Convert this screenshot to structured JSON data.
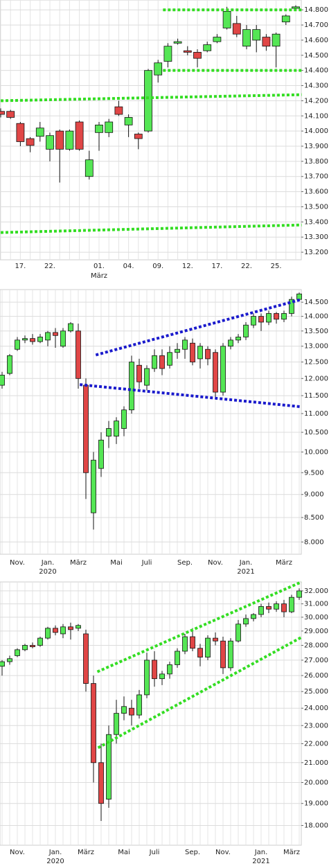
{
  "chart_data": [
    {
      "type": "candlestick",
      "log": false,
      "grid": true,
      "up_color": "#55e655",
      "down_color": "#e04646",
      "categories": [
        null,
        null,
        "17.",
        null,
        null,
        "22.",
        null,
        null,
        null,
        null,
        "01.",
        null,
        null,
        "04.",
        null,
        null,
        "09.",
        null,
        null,
        "12.",
        null,
        null,
        "17.",
        null,
        null,
        "22.",
        null,
        null,
        "25.",
        null,
        null
      ],
      "x_sublabels": [
        null,
        null,
        null,
        null,
        null,
        null,
        null,
        null,
        null,
        null,
        "März",
        null,
        null,
        null,
        null,
        null,
        null,
        null,
        null,
        null,
        null,
        null,
        null,
        null,
        null,
        null,
        null,
        null,
        null,
        null,
        null
      ],
      "open": [
        14130,
        14130,
        14050,
        13950,
        13965,
        13880,
        14000,
        13880,
        14060,
        13700,
        13990,
        13990,
        14160,
        14040,
        13980,
        14000,
        14370,
        14460,
        14580,
        14530,
        14520,
        14530,
        14590,
        14680,
        14710,
        14560,
        14600,
        14620,
        14560,
        14720,
        14810
      ],
      "high": [
        14150,
        14140,
        14060,
        13960,
        14060,
        13990,
        14010,
        14010,
        14070,
        13870,
        14060,
        14080,
        14200,
        14110,
        13990,
        14410,
        14470,
        14580,
        14610,
        14560,
        14540,
        14590,
        14640,
        14820,
        14760,
        14700,
        14700,
        14640,
        14650,
        14770,
        14830
      ],
      "low": [
        14090,
        14080,
        13900,
        13860,
        13930,
        13800,
        13660,
        13870,
        13870,
        13680,
        13870,
        13960,
        14100,
        13960,
        13880,
        13990,
        14320,
        14420,
        14570,
        14500,
        14420,
        14520,
        14580,
        14670,
        14620,
        14540,
        14520,
        14530,
        14420,
        14700,
        14800
      ],
      "close": [
        14110,
        14090,
        13930,
        13905,
        14020,
        13970,
        13880,
        14000,
        13880,
        13810,
        14040,
        14060,
        14110,
        14090,
        13950,
        14400,
        14450,
        14560,
        14590,
        14520,
        14480,
        14570,
        14620,
        14790,
        14640,
        14670,
        14670,
        14560,
        14640,
        14760,
        14820
      ],
      "ylim": [
        13150,
        14865
      ],
      "yticks": [
        {
          "value": 14800,
          "label": "14.800"
        },
        {
          "value": 14700,
          "label": "14.700"
        },
        {
          "value": 14600,
          "label": "14.600"
        },
        {
          "value": 14500,
          "label": "14.500"
        },
        {
          "value": 14400,
          "label": "14.400"
        },
        {
          "value": 14300,
          "label": "14.300"
        },
        {
          "value": 14200,
          "label": "14.200"
        },
        {
          "value": 14100,
          "label": "14.100"
        },
        {
          "value": 14000,
          "label": "14.000"
        },
        {
          "value": 13900,
          "label": "13.900"
        },
        {
          "value": 13800,
          "label": "13.800"
        },
        {
          "value": 13700,
          "label": "13.700"
        },
        {
          "value": 13600,
          "label": "13.600"
        },
        {
          "value": 13500,
          "label": "13.500"
        },
        {
          "value": 13400,
          "label": "13.400"
        },
        {
          "value": 13300,
          "label": "13.300"
        },
        {
          "value": 13200,
          "label": "13.200"
        }
      ],
      "trendlines": [
        {
          "x": [
            16.5,
            30.6
          ],
          "y": [
            14800,
            14800
          ],
          "color": "#33dd22"
        },
        {
          "x": [
            16.5,
            30.6
          ],
          "y": [
            14400,
            14400
          ],
          "color": "#33dd22"
        },
        {
          "x": [
            0,
            30.6
          ],
          "y": [
            14200,
            14240
          ],
          "color": "#33dd22"
        },
        {
          "x": [
            0,
            30.6
          ],
          "y": [
            13330,
            13380
          ],
          "color": "#33dd22"
        }
      ]
    },
    {
      "type": "candlestick",
      "log": true,
      "grid": true,
      "up_color": "#55e655",
      "down_color": "#e04646",
      "categories": [
        null,
        null,
        "Nov.",
        null,
        null,
        null,
        "Jan.",
        null,
        null,
        null,
        "März",
        null,
        null,
        null,
        null,
        "Mai",
        null,
        null,
        null,
        "Juli",
        null,
        null,
        null,
        null,
        "Sep.",
        null,
        null,
        null,
        "Nov.",
        null,
        null,
        null,
        "Jan.",
        null,
        null,
        null,
        null,
        "März",
        null,
        null
      ],
      "x_sublabels": [
        null,
        null,
        null,
        null,
        null,
        null,
        "2020",
        null,
        null,
        null,
        null,
        null,
        null,
        null,
        null,
        null,
        null,
        null,
        null,
        null,
        null,
        null,
        null,
        null,
        null,
        null,
        null,
        null,
        null,
        null,
        null,
        null,
        "2021",
        null,
        null,
        null,
        null,
        null,
        null,
        null
      ],
      "open": [
        11800,
        12150,
        12900,
        13200,
        13250,
        13150,
        13200,
        13450,
        13000,
        13500,
        13500,
        11800,
        8600,
        9600,
        10400,
        10400,
        10600,
        11100,
        12400,
        11800,
        12300,
        12700,
        12400,
        12800,
        12900,
        13100,
        12600,
        12900,
        12800,
        11600,
        13000,
        13200,
        13300,
        13700,
        14000,
        13800,
        14100,
        13900,
        14100,
        14600
      ],
      "high": [
        12200,
        12750,
        13300,
        13350,
        13400,
        13400,
        13500,
        13600,
        13600,
        13800,
        13750,
        12000,
        10000,
        10500,
        10800,
        10900,
        11200,
        12700,
        12600,
        12400,
        12900,
        12900,
        13000,
        13100,
        13300,
        13250,
        13100,
        13000,
        12900,
        13100,
        13300,
        13400,
        13800,
        14100,
        14100,
        14200,
        14150,
        14200,
        14700,
        14850
      ],
      "low": [
        11700,
        12100,
        12850,
        13100,
        13050,
        13100,
        13000,
        12950,
        12950,
        13450,
        11700,
        8900,
        8250,
        9400,
        10100,
        10200,
        10400,
        11000,
        11700,
        11650,
        12200,
        12100,
        12300,
        12600,
        12600,
        12400,
        12300,
        12400,
        11450,
        11500,
        12900,
        13100,
        13200,
        13600,
        13500,
        13700,
        13750,
        13800,
        14000,
        14550
      ],
      "close": [
        12100,
        12700,
        13200,
        13250,
        13150,
        13300,
        13450,
        13350,
        13500,
        13750,
        12000,
        9500,
        9800,
        10300,
        10600,
        10800,
        11100,
        12500,
        11900,
        12300,
        12700,
        12300,
        12800,
        12900,
        13200,
        12500,
        13000,
        12600,
        11600,
        13000,
        13200,
        13300,
        13700,
        14000,
        13800,
        14100,
        13900,
        14100,
        14600,
        14800
      ],
      "ylim": [
        7760,
        14960
      ],
      "yticks": [
        {
          "value": 14500,
          "label": "14.500"
        },
        {
          "value": 14000,
          "label": "14.000"
        },
        {
          "value": 13500,
          "label": "13.500"
        },
        {
          "value": 13000,
          "label": "13.000"
        },
        {
          "value": 12500,
          "label": "12.500"
        },
        {
          "value": 12000,
          "label": "12.000"
        },
        {
          "value": 11500,
          "label": "11.500"
        },
        {
          "value": 11000,
          "label": "11.000"
        },
        {
          "value": 10500,
          "label": "10.500"
        },
        {
          "value": 10000,
          "label": "10.000"
        },
        {
          "value": 9500,
          "label": "9.500"
        },
        {
          "value": 9000,
          "label": "9.000"
        },
        {
          "value": 8500,
          "label": "8.500"
        },
        {
          "value": 8000,
          "label": "8.000"
        }
      ],
      "trendlines": [
        {
          "x": [
            12.3,
            39.3
          ],
          "y": [
            12720,
            14600
          ],
          "color": "#1a1acc"
        },
        {
          "x": [
            10.2,
            39.3
          ],
          "y": [
            11820,
            11185
          ],
          "color": "#1a1acc"
        }
      ]
    },
    {
      "type": "candlestick",
      "log": true,
      "grid": true,
      "up_color": "#55e655",
      "down_color": "#e04646",
      "categories": [
        null,
        null,
        "Nov.",
        null,
        null,
        null,
        null,
        "Jan.",
        null,
        null,
        null,
        "März",
        null,
        null,
        null,
        null,
        "Mai",
        null,
        null,
        null,
        "Juli",
        null,
        null,
        null,
        null,
        "Sep.",
        null,
        null,
        null,
        "Nov.",
        null,
        null,
        null,
        null,
        "Jan.",
        null,
        null,
        null,
        "März",
        null
      ],
      "x_sublabels": [
        null,
        null,
        null,
        null,
        null,
        null,
        null,
        "2020",
        null,
        null,
        null,
        null,
        null,
        null,
        null,
        null,
        null,
        null,
        null,
        null,
        null,
        null,
        null,
        null,
        null,
        null,
        null,
        null,
        null,
        null,
        null,
        null,
        null,
        null,
        "2021",
        null,
        null,
        null,
        null,
        null
      ],
      "open": [
        26600,
        26900,
        27300,
        27700,
        28000,
        28000,
        28500,
        29200,
        28800,
        29300,
        29200,
        28800,
        25500,
        21000,
        19200,
        22500,
        23700,
        24000,
        23600,
        24800,
        27000,
        25800,
        26100,
        26700,
        27600,
        28600,
        27800,
        27200,
        28500,
        28300,
        26500,
        28300,
        29500,
        29900,
        30200,
        30800,
        30600,
        31000,
        30400,
        31500
      ],
      "high": [
        27000,
        27300,
        27800,
        28100,
        28200,
        28600,
        29300,
        29400,
        29500,
        29600,
        29500,
        29100,
        26000,
        22000,
        23000,
        24500,
        24700,
        24500,
        25100,
        27500,
        27600,
        26300,
        26900,
        27800,
        28800,
        29200,
        28100,
        28700,
        28900,
        28600,
        28500,
        29800,
        30200,
        30300,
        31000,
        31100,
        31200,
        31300,
        31700,
        32200
      ],
      "low": [
        26000,
        26700,
        27200,
        27600,
        27800,
        27900,
        28400,
        28700,
        28500,
        28400,
        29000,
        25000,
        20000,
        18200,
        18800,
        22000,
        23300,
        23000,
        23400,
        24600,
        25300,
        25400,
        25800,
        26500,
        27400,
        27600,
        26600,
        27000,
        28000,
        26100,
        26300,
        28200,
        29300,
        29700,
        30000,
        30300,
        30400,
        30000,
        30300,
        31300
      ],
      "close": [
        26900,
        27100,
        27700,
        28000,
        27900,
        28500,
        29200,
        28900,
        29300,
        29100,
        29400,
        25500,
        21000,
        19000,
        22500,
        23700,
        24100,
        23600,
        24800,
        27000,
        25800,
        26100,
        26700,
        27600,
        28600,
        27800,
        27200,
        28500,
        28300,
        26500,
        28300,
        29500,
        29900,
        30200,
        30800,
        30600,
        31000,
        30400,
        31500,
        32000
      ],
      "ylim": [
        17150,
        32710
      ],
      "yticks": [
        {
          "value": 32000,
          "label": "32.000"
        },
        {
          "value": 31000,
          "label": "31.000"
        },
        {
          "value": 30000,
          "label": "30.000"
        },
        {
          "value": 29000,
          "label": "29.000"
        },
        {
          "value": 28000,
          "label": "28.000"
        },
        {
          "value": 27000,
          "label": "27.000"
        },
        {
          "value": 26000,
          "label": "26.000"
        },
        {
          "value": 25000,
          "label": "25.000"
        },
        {
          "value": 24000,
          "label": "24.000"
        },
        {
          "value": 23000,
          "label": "23.000"
        },
        {
          "value": 22000,
          "label": "22.000"
        },
        {
          "value": 21000,
          "label": "21.000"
        },
        {
          "value": 20000,
          "label": "20.000"
        },
        {
          "value": 19000,
          "label": "19.000"
        },
        {
          "value": 18000,
          "label": "18.000"
        }
      ],
      "trendlines": [
        {
          "x": [
            12.5,
            39.3
          ],
          "y": [
            26240,
            32710
          ],
          "color": "#33dd22"
        },
        {
          "x": [
            12.6,
            39.3
          ],
          "y": [
            21780,
            28560
          ],
          "color": "#33dd22"
        }
      ]
    }
  ]
}
